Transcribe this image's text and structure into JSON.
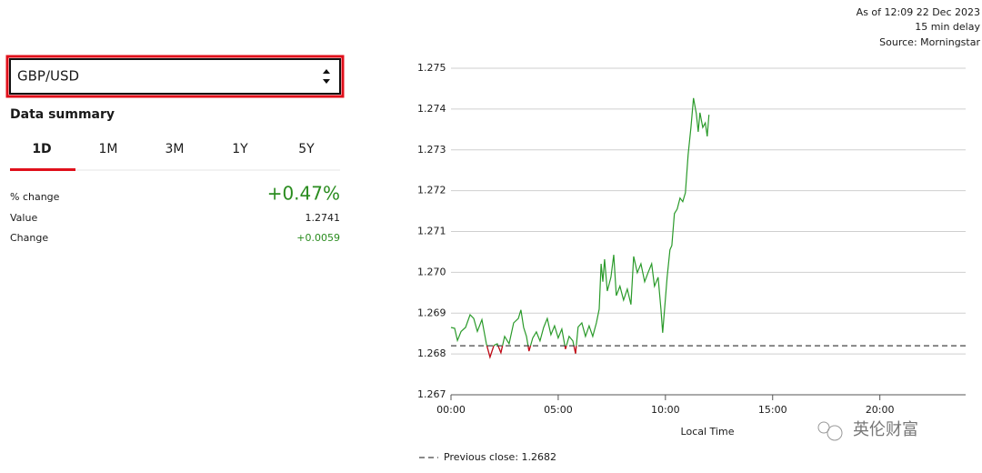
{
  "header": {
    "as_of": "As of 12:09 22 Dec 2023",
    "delay": "15 min delay",
    "source": "Source: Morningstar"
  },
  "selector": {
    "value": "GBP/USD"
  },
  "summary": {
    "title": "Data summary",
    "tabs": [
      "1D",
      "1M",
      "3M",
      "1Y",
      "5Y"
    ],
    "active_tab": 0,
    "rows": [
      {
        "label": "% change",
        "value": "+0.47%"
      },
      {
        "label": "Value",
        "value": "1.2741"
      },
      {
        "label": "Change",
        "value": "+0.0059"
      }
    ],
    "positive_color": "#2a8c1f"
  },
  "chart_data": {
    "type": "line",
    "xlabel": "Local Time",
    "x": [
      0,
      0.17,
      0.3,
      0.47,
      0.68,
      0.89,
      1.06,
      1.23,
      1.44,
      1.65,
      1.82,
      2.0,
      2.16,
      2.33,
      2.5,
      2.71,
      2.92,
      3.14,
      3.26,
      3.39,
      3.52,
      3.64,
      3.81,
      3.98,
      4.15,
      4.32,
      4.49,
      4.66,
      4.83,
      5.0,
      5.17,
      5.34,
      5.51,
      5.68,
      5.81,
      5.93,
      6.1,
      6.27,
      6.44,
      6.61,
      6.78,
      6.91,
      7.0,
      7.08,
      7.16,
      7.29,
      7.46,
      7.59,
      7.71,
      7.88,
      8.05,
      8.22,
      8.39,
      8.52,
      8.69,
      8.86,
      9.03,
      9.19,
      9.36,
      9.49,
      9.66,
      9.79,
      9.87,
      9.96,
      10.08,
      10.21,
      10.3,
      10.42,
      10.55,
      10.68,
      10.81,
      10.93,
      11.06,
      11.19,
      11.31,
      11.44,
      11.53,
      11.61,
      11.74,
      11.86,
      11.95,
      12.03
    ],
    "series": [
      {
        "color": "#2a9a2a",
        "below_color": "#d0021b",
        "values": [
          1.26865,
          1.26863,
          1.26833,
          1.26855,
          1.26865,
          1.26896,
          1.26887,
          1.26855,
          1.26884,
          1.26825,
          1.26792,
          1.26821,
          1.26825,
          1.26803,
          1.26843,
          1.26825,
          1.26876,
          1.26887,
          1.26908,
          1.26865,
          1.26843,
          1.26807,
          1.26839,
          1.26854,
          1.26832,
          1.26865,
          1.26887,
          1.26847,
          1.26869,
          1.26839,
          1.26861,
          1.26812,
          1.26843,
          1.26832,
          1.26801,
          1.26866,
          1.26876,
          1.26843,
          1.26869,
          1.26843,
          1.26876,
          1.2691,
          1.27021,
          1.26977,
          1.27032,
          1.26954,
          1.26988,
          1.27043,
          1.26943,
          1.26966,
          1.26932,
          1.26959,
          1.26921,
          1.27039,
          1.26999,
          1.27021,
          1.26977,
          1.26999,
          1.27021,
          1.26966,
          1.26988,
          1.2691,
          1.26852,
          1.2691,
          1.26988,
          1.27055,
          1.27066,
          1.27144,
          1.27155,
          1.27182,
          1.27173,
          1.27195,
          1.27288,
          1.27355,
          1.27427,
          1.27389,
          1.27344,
          1.27391,
          1.27355,
          1.27366,
          1.27333,
          1.27386
        ]
      }
    ],
    "xlim": [
      0,
      24
    ],
    "ylim": [
      1.267,
      1.275
    ],
    "xticks": [
      {
        "value": 0,
        "label": "00:00"
      },
      {
        "value": 5,
        "label": "05:00"
      },
      {
        "value": 10,
        "label": "10:00"
      },
      {
        "value": 15,
        "label": "15:00"
      },
      {
        "value": 20,
        "label": "20:00"
      }
    ],
    "yticks": [
      1.267,
      1.268,
      1.269,
      {
        "value": 1.27,
        "label": "1.270"
      },
      1.271,
      1.272,
      1.273,
      1.274,
      1.275
    ],
    "grid": true,
    "previous_close": 1.2682,
    "previous_close_label": "Previous close: 1.2682"
  },
  "watermark": "英伦财富"
}
